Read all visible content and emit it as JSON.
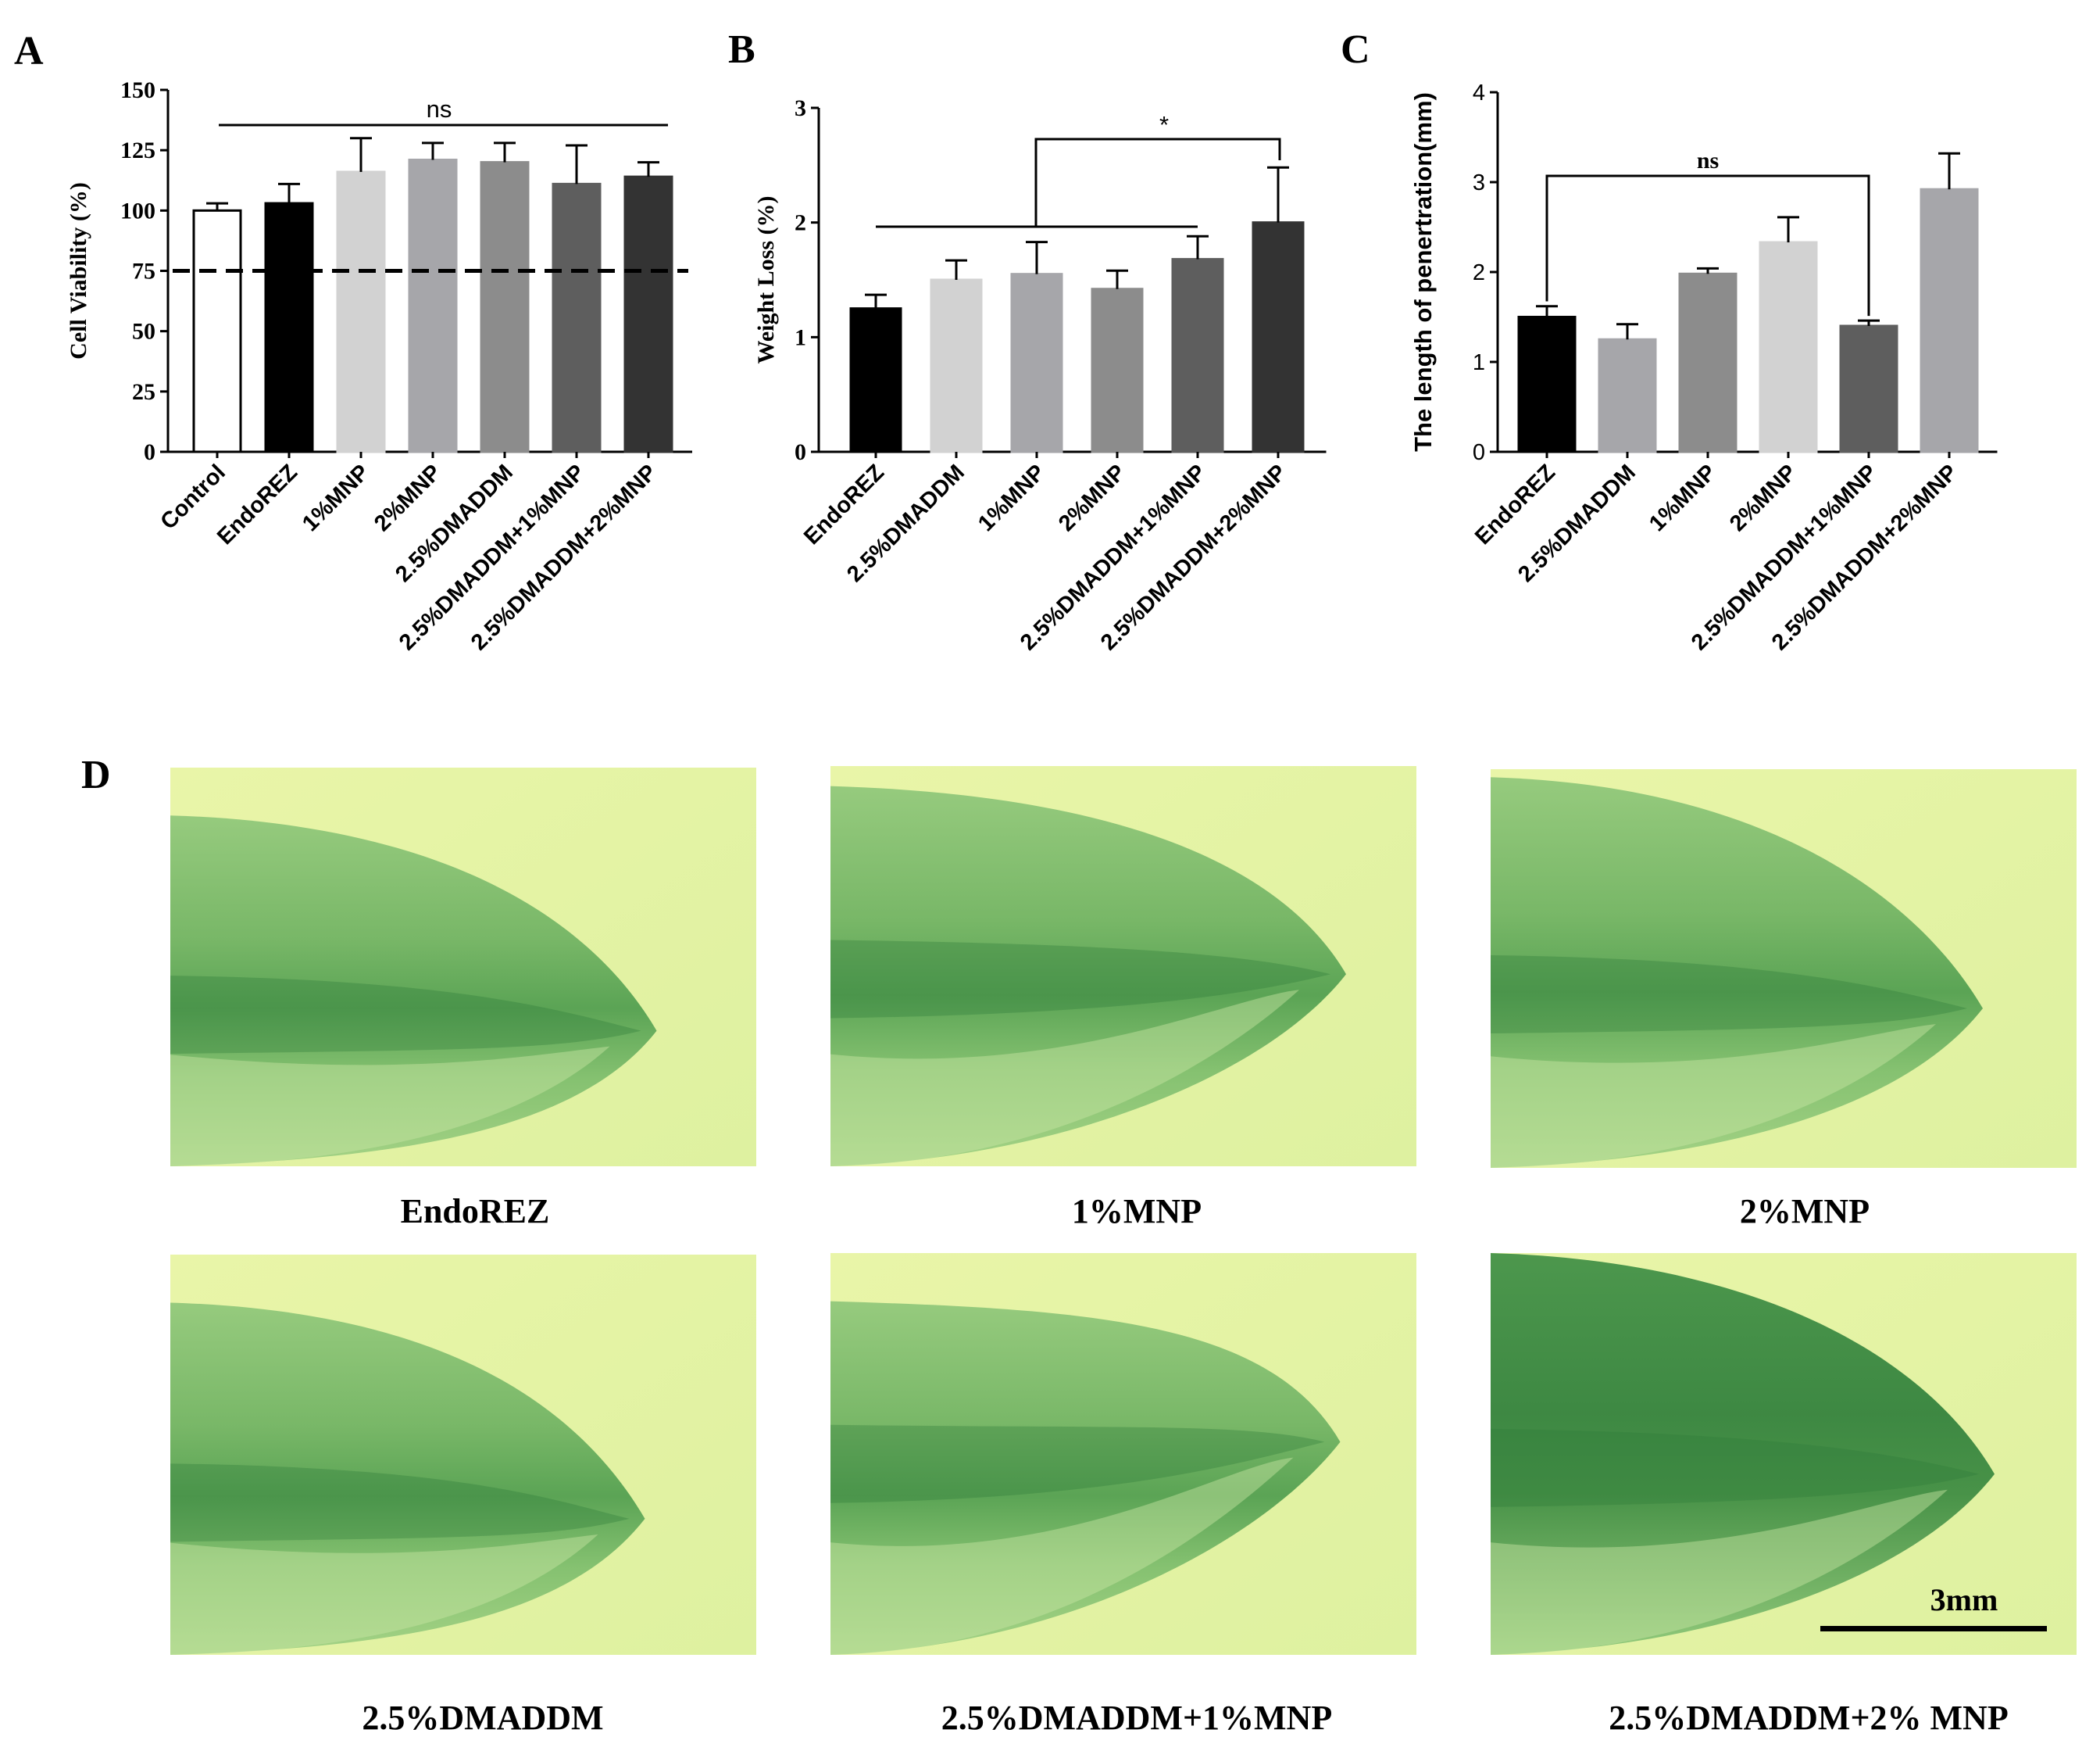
{
  "chart_data": [
    {
      "panel": "A",
      "type": "bar",
      "ylabel": "Cell Viability (%)",
      "ylim": [
        0,
        150
      ],
      "yticks": [
        "0",
        "25",
        "50",
        "75",
        "100",
        "125",
        "150"
      ],
      "categories": [
        "Control",
        "EndoREZ",
        "1%MNP",
        "2%MNP",
        "2.5%DMADDM",
        "2.5%DMADDM+1%MNP",
        "2.5%DMADDM+2%MNP"
      ],
      "values": [
        100,
        103,
        116,
        121,
        120,
        111,
        114
      ],
      "errors": [
        3,
        8,
        14,
        7,
        8,
        16,
        6
      ],
      "colors": [
        "#ffffff",
        "#000000",
        "#d2d2d2",
        "#a6a6aa",
        "#8c8c8c",
        "#5e5e5e",
        "#333333"
      ],
      "reference_line": 75,
      "annotation": "ns"
    },
    {
      "panel": "B",
      "type": "bar",
      "ylabel": "Weight Loss (%)",
      "ylim": [
        0,
        3
      ],
      "yticks": [
        "0",
        "1",
        "2",
        "3"
      ],
      "categories": [
        "EndoREZ",
        "2.5%DMADDM",
        "1%MNP",
        "2%MNP",
        "2.5%DMADDM+1%MNP",
        "2.5%DMADDM+2%MNP"
      ],
      "values": [
        1.25,
        1.5,
        1.55,
        1.42,
        1.68,
        2.0
      ],
      "errors": [
        0.12,
        0.17,
        0.28,
        0.16,
        0.2,
        0.48
      ],
      "colors": [
        "#000000",
        "#d2d2d2",
        "#a6a6aa",
        "#8c8c8c",
        "#5e5e5e",
        "#333333"
      ],
      "annotation": "*"
    },
    {
      "panel": "C",
      "type": "bar",
      "ylabel": "The length of penertration(mm)",
      "ylim": [
        0,
        4
      ],
      "yticks": [
        "0",
        "1",
        "2",
        "3",
        "4"
      ],
      "categories": [
        "EndoREZ",
        "2.5%DMADDM",
        "1%MNP",
        "2%MNP",
        "2.5%DMADDM+1%MNP",
        "2.5%DMADDM+2%MNP"
      ],
      "values": [
        1.5,
        1.25,
        1.98,
        2.33,
        1.4,
        2.92
      ],
      "errors": [
        0.12,
        0.17,
        0.06,
        0.28,
        0.06,
        0.4
      ],
      "colors": [
        "#000000",
        "#a6a6aa",
        "#8c8c8c",
        "#d2d2d2",
        "#5e5e5e",
        "#a6a6aa"
      ],
      "annotation": "ns"
    }
  ],
  "panels": {
    "a": "A",
    "b": "B",
    "c": "C",
    "d": "D"
  },
  "photos": [
    {
      "caption": "EndoREZ"
    },
    {
      "caption": "1%MNP"
    },
    {
      "caption": "2%MNP"
    },
    {
      "caption": "2.5%DMADDM"
    },
    {
      "caption": "2.5%DMADDM+1%MNP"
    },
    {
      "caption": "2.5%DMADDM+2% MNP"
    }
  ],
  "scale_bar": {
    "label": "3mm"
  }
}
